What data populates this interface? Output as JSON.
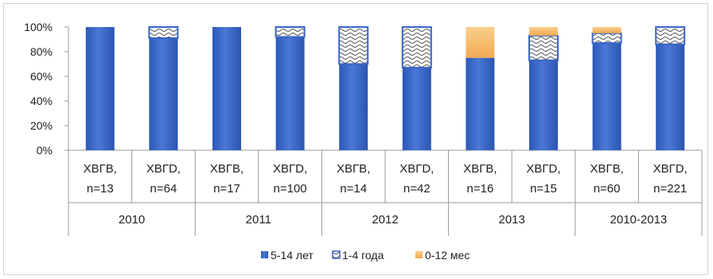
{
  "chart_data": {
    "type": "bar",
    "stacked": true,
    "percent": true,
    "ylim": [
      0,
      100
    ],
    "yticks": [
      "0%",
      "20%",
      "40%",
      "60%",
      "80%",
      "100%"
    ],
    "grid": false,
    "legend_position": "bottom",
    "groups": [
      {
        "label": "2010",
        "categories": [
          [
            "ХВГВ,",
            "n=13"
          ],
          [
            "ХВГD,",
            "n=64"
          ]
        ]
      },
      {
        "label": "2011",
        "categories": [
          [
            "ХВГВ,",
            "n=17"
          ],
          [
            "ХВГD,",
            "n=100"
          ]
        ]
      },
      {
        "label": "2012",
        "categories": [
          [
            "ХВГВ,",
            "n=14"
          ],
          [
            "ХВГD,",
            "n=42"
          ]
        ]
      },
      {
        "label": "2013",
        "categories": [
          [
            "ХВГВ,",
            "n=16"
          ],
          [
            "ХВГD,",
            "n=15"
          ]
        ]
      },
      {
        "label": "2010-2013",
        "categories": [
          [
            "ХВГВ,",
            "n=60"
          ],
          [
            "ХВГD,",
            "n=221"
          ]
        ]
      }
    ],
    "series": [
      {
        "name": "5-14 лет",
        "color": "#3a66c4",
        "pattern": "solid",
        "values": [
          100,
          91,
          100,
          92,
          70,
          67,
          75,
          73,
          87,
          86
        ]
      },
      {
        "name": "1-4 года",
        "color": "#5577bb",
        "pattern": "wave",
        "values": [
          0,
          9,
          0,
          8,
          30,
          33,
          0,
          20,
          8,
          14
        ]
      },
      {
        "name": "0-12 мес",
        "color": "#f5bf77",
        "pattern": "solid",
        "values": [
          0,
          0,
          0,
          0,
          0,
          0,
          25,
          7,
          5,
          0
        ]
      }
    ]
  }
}
